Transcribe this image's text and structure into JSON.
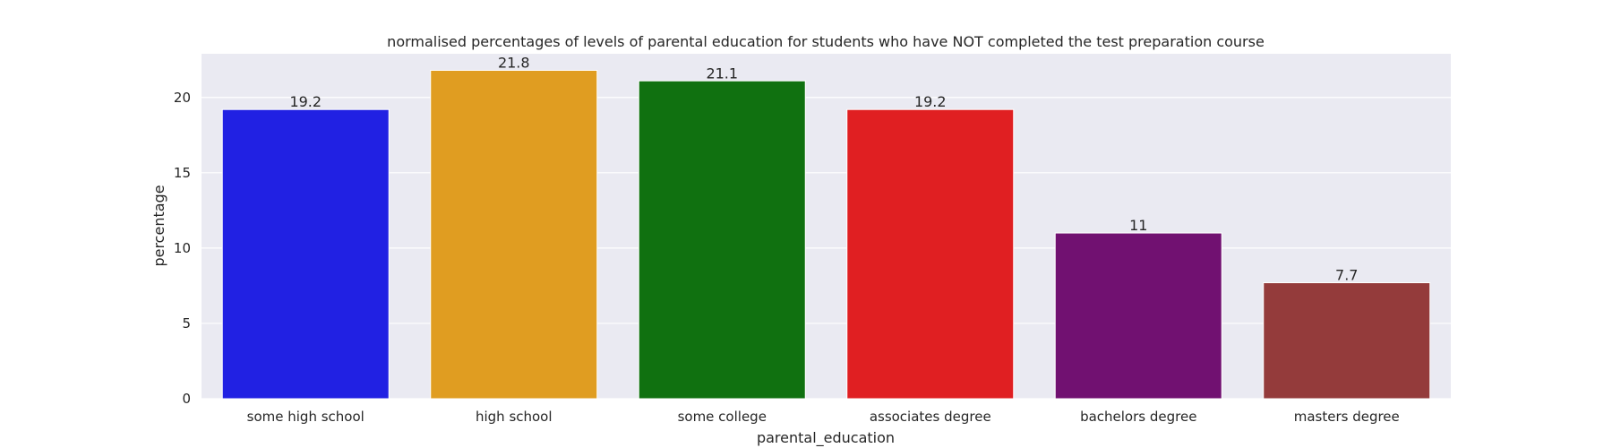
{
  "chart_data": {
    "type": "bar",
    "title": "normalised percentages of levels of parental education for students who have NOT completed the test preparation course",
    "xlabel": "parental_education",
    "ylabel": "percentage",
    "categories": [
      "some high school",
      "high school",
      "some college",
      "associates degree",
      "bachelors degree",
      "masters degree"
    ],
    "values": [
      19.2,
      21.8,
      21.1,
      19.2,
      11,
      7.7
    ],
    "data_labels": [
      "19.2",
      "21.8",
      "21.1",
      "19.2",
      "11",
      "7.7"
    ],
    "bar_colors": [
      "#2121e3",
      "#e09d21",
      "#107110",
      "#e01f22",
      "#711171",
      "#943b3b"
    ],
    "ylim": [
      0,
      22.9
    ],
    "yticks": [
      0,
      5,
      10,
      15,
      20
    ],
    "grid": true,
    "background_color": "#eaeaf2",
    "grid_color": "#ffffff",
    "legend": "none"
  }
}
